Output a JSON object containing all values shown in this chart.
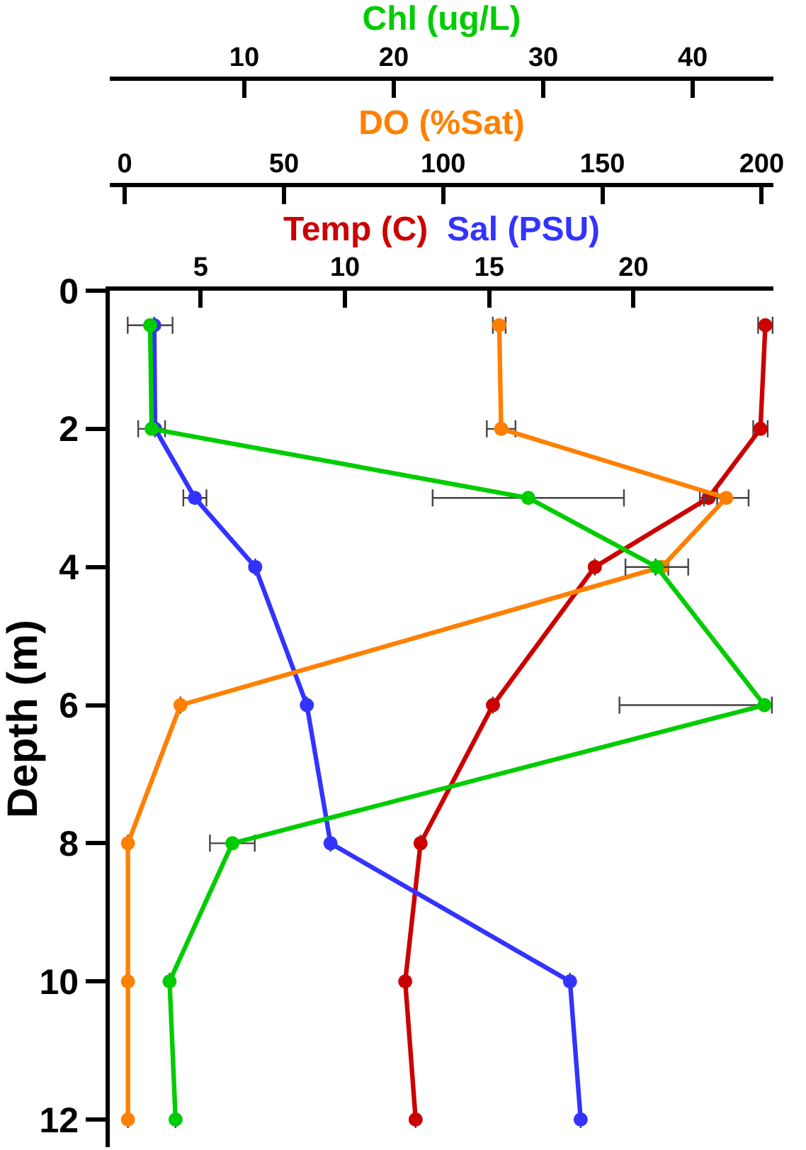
{
  "chart_data": [
    {
      "type": "line",
      "orientation": "horizontal",
      "ylabel": "Depth (m)",
      "x": [
        0.5,
        2,
        3,
        4,
        6,
        8,
        10,
        12
      ],
      "ylim": [
        12.4,
        0
      ],
      "yticks": [
        0,
        2,
        4,
        6,
        8,
        10,
        12
      ],
      "xlim": [
        1.85,
        24.85
      ],
      "xticks": [
        5,
        10,
        15,
        20
      ],
      "x2lim": [
        -4.7,
        203.7
      ],
      "x2ticks": [
        0,
        50,
        100,
        150,
        200
      ],
      "grid": false,
      "legend": false,
      "marker": "circle",
      "line_style": "solid",
      "series": [
        {
          "name": "Temp (C)",
          "color": "#cc0000",
          "values": [
            24.57,
            24.4,
            22.6,
            18.66,
            15.13,
            12.62,
            12.09,
            12.45
          ],
          "errors": [
            0.25,
            0.25,
            0.3,
            null,
            null,
            null,
            null,
            null
          ]
        },
        {
          "name": "Sal (PSU)",
          "color": "#3333ff",
          "values": [
            3.39,
            3.42,
            4.8,
            6.89,
            8.68,
            9.5,
            17.8,
            18.17
          ],
          "errors": [
            null,
            null,
            0.4,
            null,
            null,
            null,
            null,
            null
          ]
        },
        {
          "name": "DO (%Sat)",
          "color": "#ff8000",
          "axis": "x2",
          "values": [
            117.6,
            118.2,
            188.9,
            168.7,
            17.5,
            1,
            1,
            1
          ],
          "errors": [
            2,
            4.5,
            7,
            2,
            null,
            null,
            null,
            null
          ]
        }
      ]
    },
    {
      "type": "line",
      "orientation": "horizontal",
      "x": [
        0.5,
        2,
        3,
        4,
        6,
        8,
        10,
        12
      ],
      "ylim": [
        12.4,
        0
      ],
      "xlim": [
        1.0,
        45.4
      ],
      "xticks": [
        10,
        20,
        30,
        40
      ],
      "tick_labels": "x",
      "grid": false,
      "legend": false,
      "marker": "circle",
      "line_style": "solid",
      "series": [
        {
          "name": "Chl (ug/L)",
          "color": "#00cc00",
          "values": [
            3.7,
            3.8,
            29.0,
            37.6,
            44.8,
            9.2,
            5.0,
            5.4
          ],
          "errors": [
            1.5,
            0.9,
            6.4,
            2.1,
            [
              35.1,
              45.3
            ],
            1.5,
            null,
            null
          ]
        }
      ]
    }
  ]
}
